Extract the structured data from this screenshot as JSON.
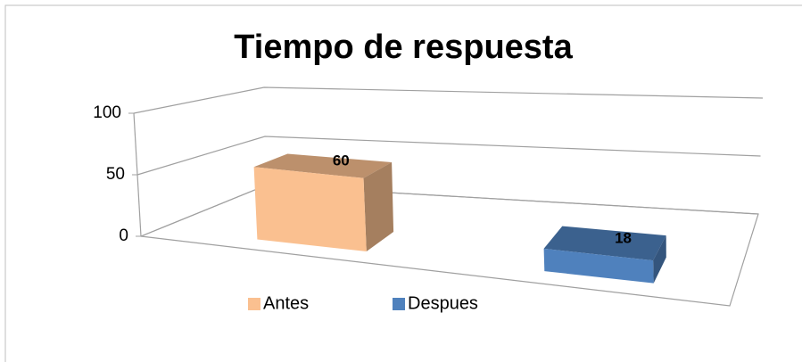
{
  "chart_data": {
    "type": "bar3d",
    "title": "Tiempo de respuesta",
    "categories": [
      null
    ],
    "series": [
      {
        "name": "Antes",
        "color": "#fac090",
        "values": [
          60
        ]
      },
      {
        "name": "Despues",
        "color": "#4f81bd",
        "values": [
          18
        ]
      }
    ],
    "ylim": [
      0,
      100
    ],
    "yticks": [
      0,
      50,
      100
    ],
    "grid": true,
    "legend": "bottom"
  }
}
